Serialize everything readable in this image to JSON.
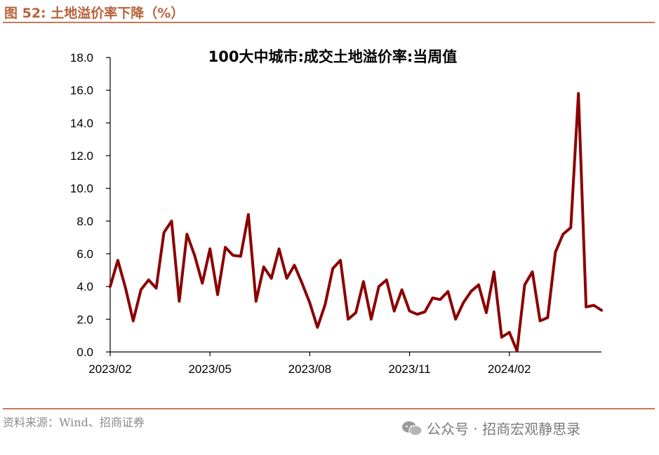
{
  "figure": {
    "label": "图 52:",
    "caption": "土地溢价率下降（%）",
    "source": "资料来源：Wind、招商证券",
    "watermark": "公众号 · 招商宏观静思录",
    "colors": {
      "accent": "#b8623c",
      "line": "#8b0000"
    }
  },
  "chart_data": {
    "type": "line",
    "title": "100大中城市:成交土地溢价率:当周值",
    "xlabel": "",
    "ylabel": "",
    "ylim": [
      0,
      18
    ],
    "yticks": [
      "0.0",
      "2.0",
      "4.0",
      "6.0",
      "8.0",
      "10.0",
      "12.0",
      "14.0",
      "16.0",
      "18.0"
    ],
    "xticks": [
      "2023/02",
      "2023/05",
      "2023/08",
      "2023/11",
      "2024/02"
    ],
    "xtick_index": [
      0,
      13,
      26,
      39,
      52
    ],
    "grid": false,
    "legend": "none",
    "series": [
      {
        "values": [
          4.0,
          5.6,
          3.9,
          1.9,
          3.8,
          4.4,
          3.9,
          7.3,
          8.0,
          3.1,
          7.2,
          5.9,
          4.2,
          6.3,
          3.5,
          6.4,
          5.9,
          5.85,
          8.4,
          3.1,
          5.2,
          4.5,
          6.3,
          4.5,
          5.3,
          4.2,
          3.0,
          1.5,
          2.9,
          5.1,
          5.6,
          2.0,
          2.4,
          4.3,
          2.0,
          4.0,
          4.4,
          2.5,
          3.8,
          2.5,
          2.3,
          2.45,
          3.3,
          3.2,
          3.7,
          2.0,
          3.0,
          3.7,
          4.1,
          2.4,
          4.9,
          0.9,
          1.2,
          0.05,
          4.1,
          4.9,
          1.9,
          2.1,
          6.1,
          7.2,
          7.6,
          15.8,
          2.75,
          2.85,
          2.55
        ]
      }
    ]
  }
}
